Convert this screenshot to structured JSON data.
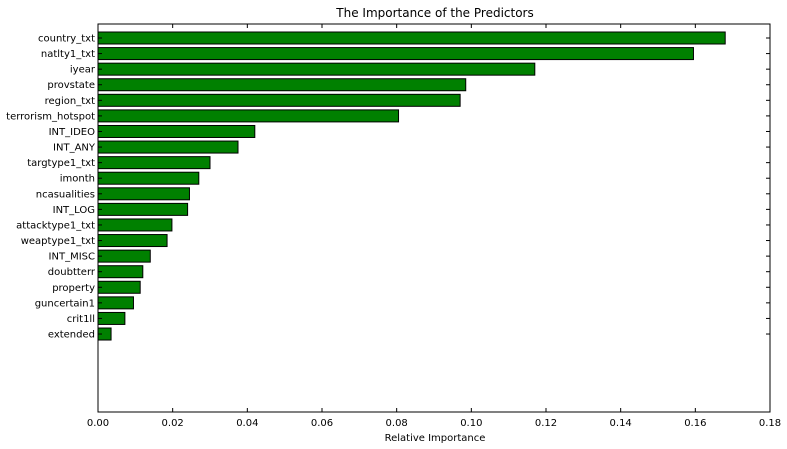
{
  "chart_data": {
    "type": "bar",
    "orientation": "horizontal",
    "title": "The Importance of the Predictors",
    "xlabel": "Relative Importance",
    "ylabel": "",
    "xlim": [
      0,
      0.18
    ],
    "xticks": [
      "0.00",
      "0.02",
      "0.04",
      "0.06",
      "0.08",
      "0.10",
      "0.12",
      "0.14",
      "0.16",
      "0.18"
    ],
    "bar_color": "#008000",
    "grid": false,
    "categories": [
      "country_txt",
      "natlty1_txt",
      "iyear",
      "provstate",
      "region_txt",
      "terrorism_hotspot",
      "INT_IDEO",
      "INT_ANY",
      "targtype1_txt",
      "imonth",
      "ncasualities",
      "INT_LOG",
      "attacktype1_txt",
      "weaptype1_txt",
      "INT_MISC",
      "doubtterr",
      "property",
      "guncertain1",
      "crit1ll",
      "extended"
    ],
    "values": [
      0.168,
      0.1595,
      0.117,
      0.0985,
      0.097,
      0.0805,
      0.042,
      0.0375,
      0.03,
      0.027,
      0.0245,
      0.024,
      0.0198,
      0.0185,
      0.014,
      0.012,
      0.0113,
      0.0095,
      0.0072,
      0.0035
    ]
  }
}
